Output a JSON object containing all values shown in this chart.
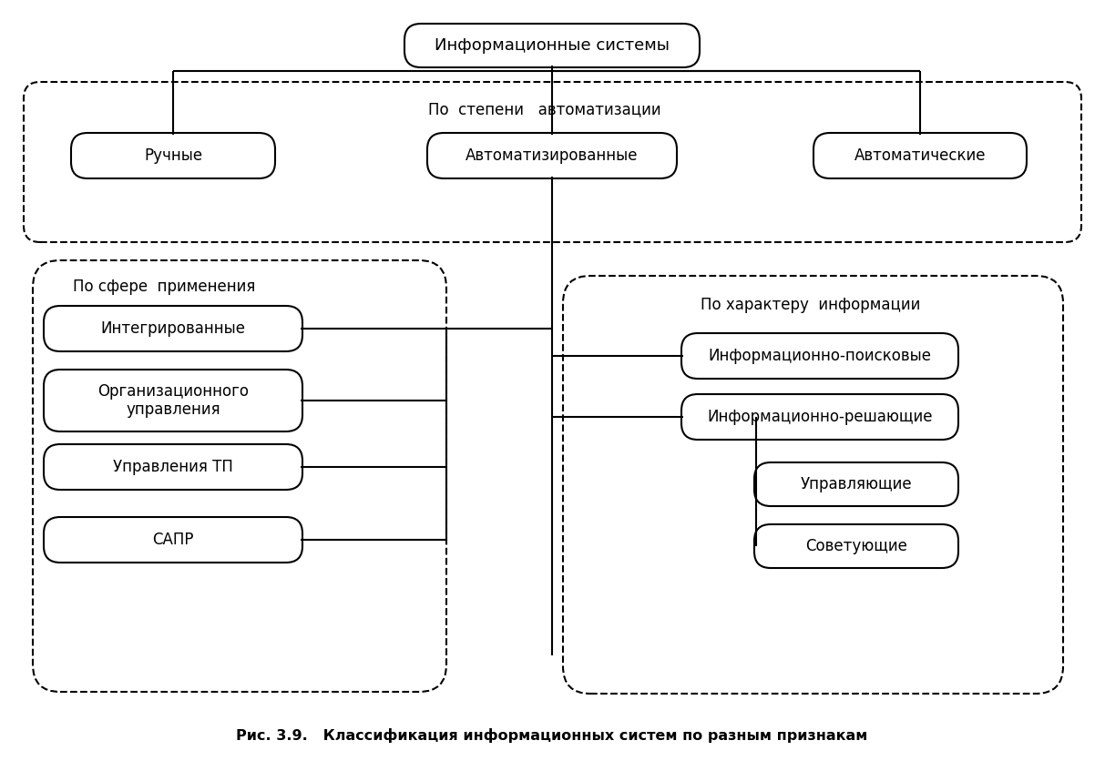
{
  "title": "Рис. 3.9.   Классификация информационных систем по разным признакам",
  "bg_color": "#ffffff",
  "box_color": "#ffffff",
  "box_edge": "#000000",
  "text_color": "#000000",
  "root_label": "Информационные системы",
  "level1_label": "По  степени   автоматизации",
  "level1_boxes": [
    "Ручные",
    "Автоматизированные",
    "Автоматические"
  ],
  "left_group_label": "По сфере  применения",
  "left_group_boxes": [
    "Интегрированные",
    "Организационного\nуправления",
    "Управления ТП",
    "САПР"
  ],
  "right_group_label": "По характеру  информации",
  "right_group_boxes_top": [
    "Информационно-поисковые",
    "Информационно-решающие"
  ],
  "right_group_boxes_bottom": [
    "Управляющие",
    "Советующие"
  ],
  "figsize": [
    12.13,
    8.47
  ],
  "dpi": 100
}
